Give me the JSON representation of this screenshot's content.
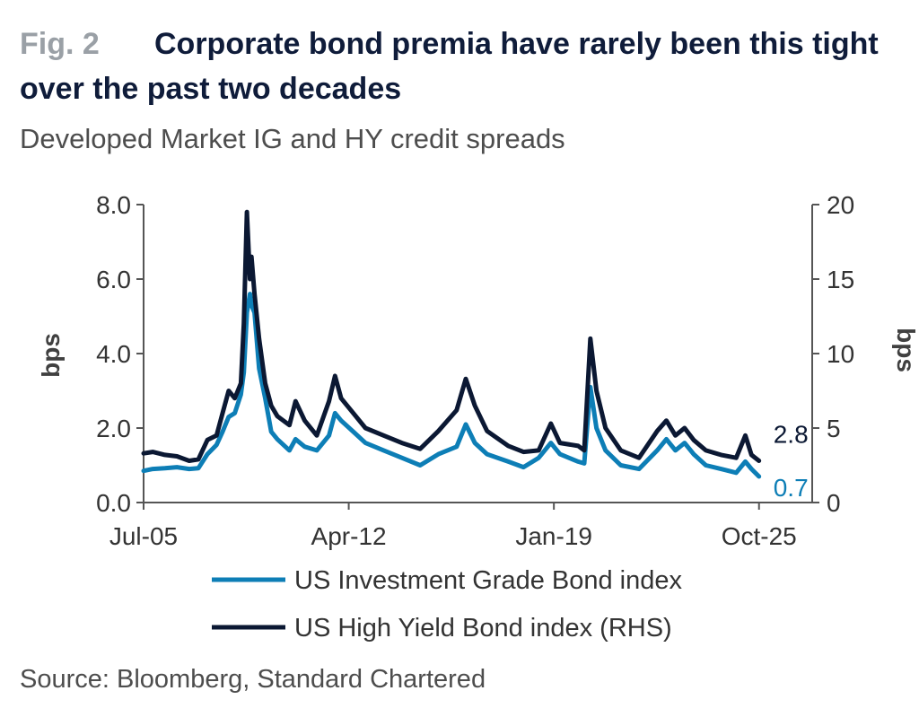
{
  "figure": {
    "number": "Fig. 2",
    "title": "Corporate bond premia have rarely been this tight over the past two decades",
    "source": "Source: Bloomberg, Standard Chartered"
  },
  "chart_data": {
    "type": "line",
    "title": "Corporate bond premia have rarely been this tight over the past two decades",
    "subtitle": "Developed Market IG and HY credit spreads",
    "ylabel_left": "bps",
    "ylabel_right": "bps",
    "left_ticks": [
      "0.0",
      "2.0",
      "4.0",
      "6.0",
      "8.0"
    ],
    "right_ticks": [
      "0",
      "5",
      "10",
      "15",
      "20"
    ],
    "x_ticks": [
      "Jul-05",
      "Apr-12",
      "Jan-19",
      "Oct-25"
    ],
    "xlim": [
      2005.5,
      2027.5
    ],
    "ylim_left": [
      0,
      8
    ],
    "ylim_right": [
      0,
      20
    ],
    "colors": {
      "ig": "#0d7eb6",
      "hy": "#0b1833"
    },
    "series": [
      {
        "name": "US Investment Grade Bond index",
        "axis": "left",
        "end_label": "0.7",
        "points": [
          [
            2005.5,
            0.85
          ],
          [
            2005.8,
            0.9
          ],
          [
            2006.2,
            0.92
          ],
          [
            2006.6,
            0.95
          ],
          [
            2007.0,
            0.9
          ],
          [
            2007.3,
            0.92
          ],
          [
            2007.6,
            1.3
          ],
          [
            2007.9,
            1.55
          ],
          [
            2008.1,
            1.9
          ],
          [
            2008.3,
            2.3
          ],
          [
            2008.5,
            2.4
          ],
          [
            2008.7,
            2.9
          ],
          [
            2008.8,
            3.5
          ],
          [
            2008.9,
            5.1
          ],
          [
            2009.0,
            5.6
          ],
          [
            2009.05,
            5.3
          ],
          [
            2009.15,
            5.1
          ],
          [
            2009.3,
            3.6
          ],
          [
            2009.5,
            2.8
          ],
          [
            2009.7,
            1.9
          ],
          [
            2009.9,
            1.7
          ],
          [
            2010.3,
            1.4
          ],
          [
            2010.5,
            1.7
          ],
          [
            2010.8,
            1.5
          ],
          [
            2011.2,
            1.4
          ],
          [
            2011.6,
            1.8
          ],
          [
            2011.8,
            2.4
          ],
          [
            2012.0,
            2.2
          ],
          [
            2012.4,
            1.9
          ],
          [
            2012.8,
            1.6
          ],
          [
            2013.4,
            1.4
          ],
          [
            2014.0,
            1.2
          ],
          [
            2014.6,
            1.0
          ],
          [
            2015.2,
            1.3
          ],
          [
            2015.8,
            1.5
          ],
          [
            2016.1,
            2.1
          ],
          [
            2016.4,
            1.6
          ],
          [
            2016.8,
            1.3
          ],
          [
            2017.5,
            1.1
          ],
          [
            2018.0,
            0.95
          ],
          [
            2018.5,
            1.2
          ],
          [
            2018.9,
            1.6
          ],
          [
            2019.2,
            1.3
          ],
          [
            2019.8,
            1.1
          ],
          [
            2020.0,
            1.05
          ],
          [
            2020.2,
            3.1
          ],
          [
            2020.4,
            2.0
          ],
          [
            2020.7,
            1.4
          ],
          [
            2021.2,
            1.0
          ],
          [
            2021.8,
            0.9
          ],
          [
            2022.4,
            1.4
          ],
          [
            2022.7,
            1.7
          ],
          [
            2023.0,
            1.4
          ],
          [
            2023.3,
            1.6
          ],
          [
            2023.6,
            1.3
          ],
          [
            2024.0,
            1.0
          ],
          [
            2024.5,
            0.9
          ],
          [
            2025.0,
            0.8
          ],
          [
            2025.3,
            1.1
          ],
          [
            2025.5,
            0.9
          ],
          [
            2025.75,
            0.7
          ]
        ]
      },
      {
        "name": "US High Yield Bond index (RHS)",
        "axis": "right",
        "end_label": "2.8",
        "points": [
          [
            2005.5,
            3.3
          ],
          [
            2005.8,
            3.4
          ],
          [
            2006.2,
            3.2
          ],
          [
            2006.6,
            3.1
          ],
          [
            2007.0,
            2.8
          ],
          [
            2007.3,
            2.9
          ],
          [
            2007.6,
            4.2
          ],
          [
            2007.9,
            4.5
          ],
          [
            2008.1,
            6.0
          ],
          [
            2008.3,
            7.5
          ],
          [
            2008.5,
            7.0
          ],
          [
            2008.7,
            8.0
          ],
          [
            2008.8,
            12.0
          ],
          [
            2008.9,
            19.5
          ],
          [
            2009.0,
            15.0
          ],
          [
            2009.05,
            16.5
          ],
          [
            2009.15,
            14.0
          ],
          [
            2009.3,
            11.0
          ],
          [
            2009.5,
            8.0
          ],
          [
            2009.7,
            6.5
          ],
          [
            2009.9,
            5.8
          ],
          [
            2010.3,
            5.2
          ],
          [
            2010.5,
            6.8
          ],
          [
            2010.8,
            5.5
          ],
          [
            2011.2,
            4.5
          ],
          [
            2011.6,
            6.8
          ],
          [
            2011.8,
            8.5
          ],
          [
            2012.0,
            7.0
          ],
          [
            2012.4,
            6.0
          ],
          [
            2012.8,
            5.0
          ],
          [
            2013.4,
            4.5
          ],
          [
            2014.0,
            4.0
          ],
          [
            2014.6,
            3.6
          ],
          [
            2015.2,
            4.8
          ],
          [
            2015.8,
            6.2
          ],
          [
            2016.1,
            8.3
          ],
          [
            2016.4,
            6.5
          ],
          [
            2016.8,
            4.8
          ],
          [
            2017.5,
            3.8
          ],
          [
            2018.0,
            3.4
          ],
          [
            2018.5,
            3.5
          ],
          [
            2018.9,
            5.3
          ],
          [
            2019.2,
            4.0
          ],
          [
            2019.8,
            3.8
          ],
          [
            2020.0,
            3.5
          ],
          [
            2020.2,
            11.0
          ],
          [
            2020.4,
            7.5
          ],
          [
            2020.7,
            5.0
          ],
          [
            2021.2,
            3.5
          ],
          [
            2021.8,
            3.0
          ],
          [
            2022.4,
            4.8
          ],
          [
            2022.7,
            5.5
          ],
          [
            2023.0,
            4.5
          ],
          [
            2023.3,
            5.0
          ],
          [
            2023.6,
            4.2
          ],
          [
            2024.0,
            3.5
          ],
          [
            2024.5,
            3.2
          ],
          [
            2025.0,
            3.0
          ],
          [
            2025.3,
            4.5
          ],
          [
            2025.5,
            3.2
          ],
          [
            2025.75,
            2.8
          ]
        ]
      }
    ]
  }
}
